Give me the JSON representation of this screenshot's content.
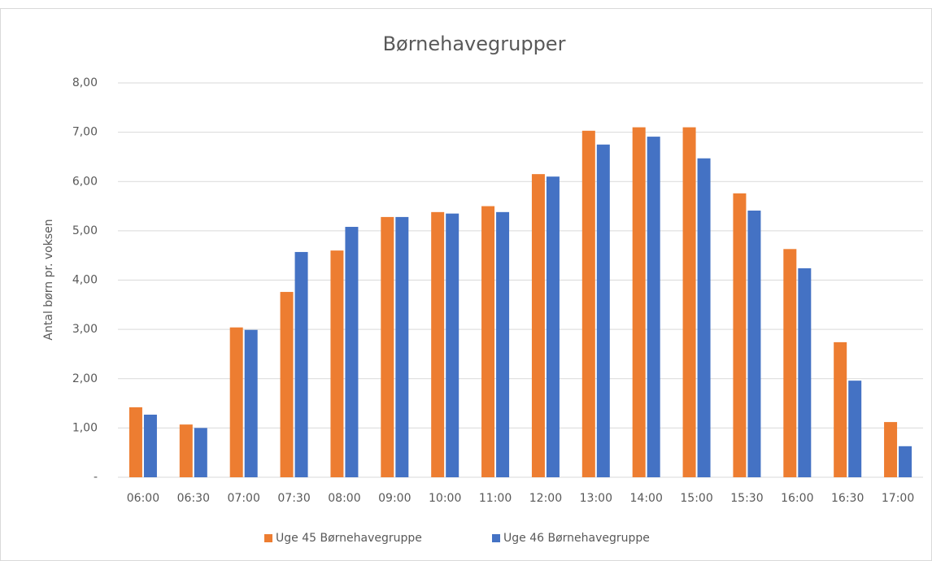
{
  "chart_data": {
    "type": "bar",
    "title": "Børnehavegrupper",
    "y_label": "Antal børn pr. voksen",
    "categories": [
      "06:00",
      "06:30",
      "07:00",
      "07:30",
      "08:00",
      "09:00",
      "10:00",
      "11:00",
      "12:00",
      "13:00",
      "14:00",
      "15:00",
      "15:30",
      "16:00",
      "16:30",
      "17:00"
    ],
    "series": [
      {
        "name": "Uge 45 Børnehavegruppe",
        "color": "#ed7d31",
        "values": [
          1.42,
          1.07,
          3.04,
          3.76,
          4.6,
          5.28,
          5.38,
          5.5,
          6.15,
          7.03,
          7.1,
          7.1,
          5.76,
          4.63,
          2.74,
          1.12
        ]
      },
      {
        "name": "Uge 46 Børnehavegruppe",
        "color": "#4472c4",
        "values": [
          1.27,
          1.0,
          2.99,
          4.57,
          5.08,
          5.28,
          5.35,
          5.38,
          6.1,
          6.75,
          6.91,
          6.47,
          5.41,
          4.24,
          1.96,
          0.63
        ]
      }
    ],
    "ylim": [
      0,
      8
    ],
    "yticks": [
      {
        "value": 0,
        "label": "-"
      },
      {
        "value": 1,
        "label": "1,00"
      },
      {
        "value": 2,
        "label": "2,00"
      },
      {
        "value": 3,
        "label": "3,00"
      },
      {
        "value": 4,
        "label": "4,00"
      },
      {
        "value": 5,
        "label": "5,00"
      },
      {
        "value": 6,
        "label": "6,00"
      },
      {
        "value": 7,
        "label": "7,00"
      },
      {
        "value": 8,
        "label": "8,00"
      }
    ],
    "grid": true,
    "legend": "bottom"
  }
}
